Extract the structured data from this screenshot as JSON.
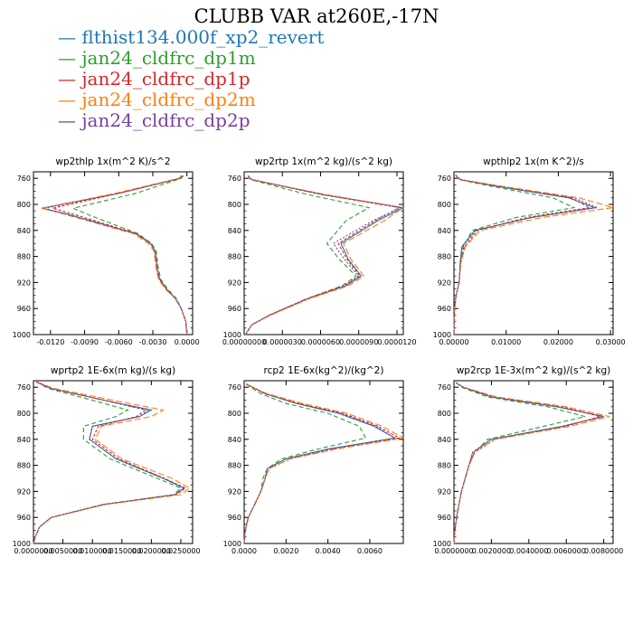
{
  "title": "CLUBB VAR at260E,-17N",
  "legend": [
    {
      "name": "flthist134.000f_xp2_revert",
      "color": "#1f77b4"
    },
    {
      "name": "jan24_cldfrc_dp1m",
      "color": "#2ca02c"
    },
    {
      "name": "jan24_cldfrc_dp1p",
      "color": "#d62728"
    },
    {
      "name": "jan24_cldfrc_dp2m",
      "color": "#ff7f0e"
    },
    {
      "name": "jan24_cldfrc_dp2p",
      "color": "#7b3fa0"
    }
  ],
  "chart_data": [
    {
      "type": "line",
      "title": "wp2thlp   1x(m^2 K)/s^2",
      "ylim": [
        1000,
        750
      ],
      "yticks": [
        760,
        800,
        840,
        880,
        920,
        960,
        1000
      ],
      "xlim": [
        -0.0135,
        0.0005
      ],
      "xticks": [
        -0.012,
        -0.009,
        -0.006,
        -0.003,
        0.0
      ],
      "xticklabels": [
        "-0.0120",
        "-0.0090",
        "-0.0060",
        "-0.0030",
        "0.0000"
      ],
      "y": [
        756,
        760,
        783,
        806,
        815,
        845,
        860,
        872,
        900,
        915,
        930,
        945,
        960,
        980,
        1000
      ],
      "series": [
        {
          "name": "flthist134.000f_xp2_revert",
          "values": [
            -0.0004,
            -0.0006,
            -0.006,
            -0.0128,
            -0.0105,
            -0.0045,
            -0.0032,
            -0.0028,
            -0.0026,
            -0.0024,
            -0.0018,
            -0.001,
            -0.0005,
            -0.0001,
            0.0
          ]
        },
        {
          "name": "jan24_cldfrc_dp1m",
          "values": [
            -0.0003,
            -0.0005,
            -0.0045,
            -0.01,
            -0.0088,
            -0.0043,
            -0.0031,
            -0.0027,
            -0.0025,
            -0.0023,
            -0.0017,
            -0.0009,
            -0.0005,
            -0.0001,
            0.0
          ]
        },
        {
          "name": "jan24_cldfrc_dp1p",
          "values": [
            -0.0004,
            -0.0006,
            -0.006,
            -0.0118,
            -0.01,
            -0.0044,
            -0.0032,
            -0.0028,
            -0.0026,
            -0.0024,
            -0.0018,
            -0.001,
            -0.0005,
            -0.0001,
            0.0
          ]
        },
        {
          "name": "jan24_cldfrc_dp2m",
          "values": [
            -0.0005,
            -0.0007,
            -0.0063,
            -0.0128,
            -0.0108,
            -0.0047,
            -0.0034,
            -0.0029,
            -0.0027,
            -0.0025,
            -0.0019,
            -0.001,
            -0.0005,
            -0.0001,
            0.0
          ]
        },
        {
          "name": "jan24_cldfrc_dp2p",
          "values": [
            -0.0004,
            -0.0006,
            -0.006,
            -0.0125,
            -0.0106,
            -0.0045,
            -0.0032,
            -0.0028,
            -0.0026,
            -0.0024,
            -0.0018,
            -0.001,
            -0.0005,
            -0.0001,
            0.0
          ]
        }
      ]
    },
    {
      "type": "line",
      "title": "wp2rtp   1x(m^2 kg)/(s^2 kg)",
      "ylim": [
        1000,
        750
      ],
      "yticks": [
        760,
        800,
        840,
        880,
        920,
        960,
        1000
      ],
      "xlim": [
        0.0,
        1.25e-05
      ],
      "xticks": [
        0.0,
        3e-06,
        6e-06,
        9e-06,
        1.2e-05
      ],
      "xticklabels": [
        "0.00000000",
        "0.0000030",
        "0.0000060",
        "0.0000090",
        "0.0000120"
      ],
      "y": [
        756,
        762,
        785,
        805,
        825,
        860,
        885,
        910,
        925,
        945,
        970,
        985,
        1000
      ],
      "series": [
        {
          "name": "flthist134.000f_xp2_revert",
          "values": [
            3e-07,
            6e-07,
            6.2e-06,
            1.25e-05,
            1.05e-05,
            7.6e-06,
            8.2e-06,
            9.2e-06,
            8e-06,
            5e-06,
            2e-06,
            6e-07,
            1e-07
          ]
        },
        {
          "name": "jan24_cldfrc_dp1m",
          "values": [
            3e-07,
            5e-07,
            5e-06,
            9.8e-06,
            8e-06,
            6.5e-06,
            7.5e-06,
            8.8e-06,
            7.7e-06,
            4.9e-06,
            2e-06,
            6e-07,
            1e-07
          ]
        },
        {
          "name": "jan24_cldfrc_dp1p",
          "values": [
            3e-07,
            6e-07,
            6.1e-06,
            1.22e-05,
            1.03e-05,
            7.4e-06,
            8.1e-06,
            9.1e-06,
            7.9e-06,
            5e-06,
            2e-06,
            6e-07,
            1e-07
          ]
        },
        {
          "name": "jan24_cldfrc_dp2m",
          "values": [
            3e-07,
            6e-07,
            6.4e-06,
            1.25e-05,
            1.1e-05,
            7.8e-06,
            8.4e-06,
            9.4e-06,
            8.2e-06,
            5.1e-06,
            2.1e-06,
            6e-07,
            1e-07
          ]
        },
        {
          "name": "jan24_cldfrc_dp2p",
          "values": [
            3e-07,
            6e-07,
            6.2e-06,
            1.23e-05,
            1.01e-05,
            7e-06,
            7.9e-06,
            9e-06,
            7.8e-06,
            4.9e-06,
            2e-06,
            6e-07,
            1e-07
          ]
        }
      ]
    },
    {
      "type": "line",
      "title": "wpthlp2   1x(m K^2)/s",
      "ylim": [
        1000,
        750
      ],
      "yticks": [
        760,
        800,
        840,
        880,
        920,
        960,
        1000
      ],
      "xlim": [
        0.0,
        0.0305
      ],
      "xticks": [
        0.0,
        0.01,
        0.02,
        0.03
      ],
      "xticklabels": [
        "0.00000",
        "0.01000",
        "0.02000",
        "0.03000"
      ],
      "y": [
        755,
        762,
        772,
        790,
        805,
        820,
        840,
        865,
        890,
        920,
        940,
        960,
        1000
      ],
      "series": [
        {
          "name": "flthist134.000f_xp2_revert",
          "values": [
            0.0003,
            0.0012,
            0.008,
            0.022,
            0.027,
            0.015,
            0.004,
            0.0015,
            0.0012,
            0.001,
            0.0004,
            0.0001,
            0.0
          ]
        },
        {
          "name": "jan24_cldfrc_dp1m",
          "values": [
            0.0003,
            0.001,
            0.007,
            0.019,
            0.023,
            0.012,
            0.0035,
            0.0018,
            0.0013,
            0.001,
            0.0004,
            0.0001,
            0.0
          ]
        },
        {
          "name": "jan24_cldfrc_dp1p",
          "values": [
            0.0003,
            0.0012,
            0.0085,
            0.0225,
            0.026,
            0.014,
            0.0045,
            0.002,
            0.0013,
            0.001,
            0.0004,
            0.0001,
            0.0
          ]
        },
        {
          "name": "jan24_cldfrc_dp2m",
          "values": [
            0.0003,
            0.0013,
            0.009,
            0.024,
            0.0305,
            0.017,
            0.005,
            0.0022,
            0.0013,
            0.001,
            0.0004,
            0.0001,
            0.0
          ]
        },
        {
          "name": "jan24_cldfrc_dp2p",
          "values": [
            0.0003,
            0.0012,
            0.0082,
            0.023,
            0.0275,
            0.015,
            0.0042,
            0.0016,
            0.0012,
            0.001,
            0.0004,
            0.0001,
            0.0
          ]
        }
      ]
    },
    {
      "type": "line",
      "title": "wprtp2   1E-6x(m kg)/(s kg)",
      "ylim": [
        1000,
        750
      ],
      "yticks": [
        760,
        800,
        840,
        880,
        920,
        960,
        1000
      ],
      "xlim": [
        0.0,
        0.027
      ],
      "xticks": [
        0.0,
        0.005,
        0.01,
        0.015,
        0.02,
        0.025
      ],
      "xticklabels": [
        "0.0000000",
        "0.0050000",
        "0.0100000",
        "0.0150000",
        "0.0200000",
        "0.0250000"
      ],
      "y": [
        752,
        762,
        780,
        795,
        805,
        820,
        840,
        870,
        900,
        915,
        925,
        940,
        960,
        975,
        990,
        1000
      ],
      "series": [
        {
          "name": "flthist134.000f_xp2_revert",
          "values": [
            0.0005,
            0.003,
            0.012,
            0.02,
            0.018,
            0.01,
            0.0095,
            0.014,
            0.022,
            0.0255,
            0.024,
            0.012,
            0.003,
            0.001,
            0.0003,
            0.0
          ]
        },
        {
          "name": "jan24_cldfrc_dp1m",
          "values": [
            0.0005,
            0.0025,
            0.01,
            0.016,
            0.014,
            0.0085,
            0.0085,
            0.013,
            0.021,
            0.025,
            0.0238,
            0.0118,
            0.003,
            0.001,
            0.0003,
            0.0
          ]
        },
        {
          "name": "jan24_cldfrc_dp1p",
          "values": [
            0.0005,
            0.003,
            0.012,
            0.019,
            0.0175,
            0.011,
            0.01,
            0.0145,
            0.0222,
            0.0258,
            0.0242,
            0.012,
            0.003,
            0.001,
            0.0003,
            0.0
          ]
        },
        {
          "name": "jan24_cldfrc_dp2m",
          "values": [
            0.0006,
            0.0035,
            0.0135,
            0.022,
            0.02,
            0.0115,
            0.0105,
            0.015,
            0.0235,
            0.0265,
            0.025,
            0.0122,
            0.0031,
            0.001,
            0.0003,
            0.0
          ]
        },
        {
          "name": "jan24_cldfrc_dp2p",
          "values": [
            0.0005,
            0.003,
            0.012,
            0.0195,
            0.018,
            0.01,
            0.0095,
            0.014,
            0.0222,
            0.0256,
            0.024,
            0.012,
            0.003,
            0.001,
            0.0003,
            0.0
          ]
        }
      ]
    },
    {
      "type": "line",
      "title": "rcp2   1E-6x(kg^2)/(kg^2)",
      "ylim": [
        1000,
        750
      ],
      "yticks": [
        760,
        800,
        840,
        880,
        920,
        960,
        1000
      ],
      "xlim": [
        0.0,
        0.0076
      ],
      "xticks": [
        0.0,
        0.002,
        0.004,
        0.006
      ],
      "xticklabels": [
        "0.0000",
        "0.0020",
        "0.0040",
        "0.0060"
      ],
      "y": [
        755,
        760,
        770,
        785,
        800,
        820,
        838,
        855,
        870,
        885,
        900,
        920,
        940,
        960,
        980,
        1000
      ],
      "series": [
        {
          "name": "flthist134.000f_xp2_revert",
          "values": [
            0.0001,
            0.0004,
            0.001,
            0.0025,
            0.0045,
            0.0062,
            0.0072,
            0.004,
            0.002,
            0.0011,
            0.001,
            0.0008,
            0.0005,
            0.0002,
            5e-05,
            0.0
          ]
        },
        {
          "name": "jan24_cldfrc_dp1m",
          "values": [
            0.0001,
            0.0003,
            0.0008,
            0.002,
            0.004,
            0.0055,
            0.0058,
            0.0035,
            0.0018,
            0.0011,
            0.0009,
            0.0008,
            0.0005,
            0.0002,
            5e-05,
            0.0
          ]
        },
        {
          "name": "jan24_cldfrc_dp1p",
          "values": [
            0.0001,
            0.0004,
            0.001,
            0.0026,
            0.0047,
            0.0064,
            0.0074,
            0.0042,
            0.0022,
            0.0012,
            0.001,
            0.0008,
            0.0005,
            0.0002,
            5e-05,
            0.0
          ]
        },
        {
          "name": "jan24_cldfrc_dp2m",
          "values": [
            0.0001,
            0.0004,
            0.0011,
            0.0028,
            0.0049,
            0.0066,
            0.0076,
            0.0044,
            0.0022,
            0.0012,
            0.001,
            0.0008,
            0.0005,
            0.0002,
            5e-05,
            0.0
          ]
        },
        {
          "name": "jan24_cldfrc_dp2p",
          "values": [
            0.0001,
            0.0004,
            0.001,
            0.0025,
            0.0046,
            0.0063,
            0.0072,
            0.0041,
            0.002,
            0.0011,
            0.001,
            0.0008,
            0.0005,
            0.0002,
            5e-05,
            0.0
          ]
        }
      ]
    },
    {
      "type": "line",
      "title": "wp2rcp   1E-3x(m^2 kg)/(s^2 kg)",
      "ylim": [
        1000,
        750
      ],
      "yticks": [
        760,
        800,
        840,
        880,
        920,
        960,
        1000
      ],
      "xlim": [
        0.0,
        0.0085
      ],
      "xticks": [
        0.0,
        0.002,
        0.004,
        0.006,
        0.008
      ],
      "xticklabels": [
        "0.0000000",
        "0.0020000",
        "0.0040000",
        "0.0060000",
        "0.0080000"
      ],
      "y": [
        753,
        760,
        775,
        790,
        805,
        820,
        840,
        860,
        880,
        900,
        920,
        950,
        980,
        1000
      ],
      "series": [
        {
          "name": "flthist134.000f_xp2_revert",
          "values": [
            0.0001,
            0.0005,
            0.002,
            0.0055,
            0.008,
            0.0058,
            0.002,
            0.001,
            0.0008,
            0.0006,
            0.0004,
            0.0002,
            5e-05,
            0.0
          ]
        },
        {
          "name": "jan24_cldfrc_dp1m",
          "values": [
            0.0001,
            0.0004,
            0.0018,
            0.005,
            0.007,
            0.0048,
            0.0018,
            0.0011,
            0.0008,
            0.0006,
            0.0004,
            0.0002,
            5e-05,
            0.0
          ]
        },
        {
          "name": "jan24_cldfrc_dp1p",
          "values": [
            0.0001,
            0.0005,
            0.0022,
            0.0058,
            0.0078,
            0.006,
            0.0022,
            0.0011,
            0.0008,
            0.0006,
            0.0004,
            0.0002,
            5e-05,
            0.0
          ]
        },
        {
          "name": "jan24_cldfrc_dp2m",
          "values": [
            0.0001,
            0.0005,
            0.0023,
            0.006,
            0.0083,
            0.0062,
            0.0022,
            0.001,
            0.0008,
            0.0006,
            0.0004,
            0.0002,
            5e-05,
            0.0
          ]
        },
        {
          "name": "jan24_cldfrc_dp2p",
          "values": [
            0.0001,
            0.0005,
            0.002,
            0.0055,
            0.008,
            0.0058,
            0.002,
            0.001,
            0.0008,
            0.0006,
            0.0004,
            0.0002,
            5e-05,
            0.0
          ]
        }
      ]
    }
  ]
}
